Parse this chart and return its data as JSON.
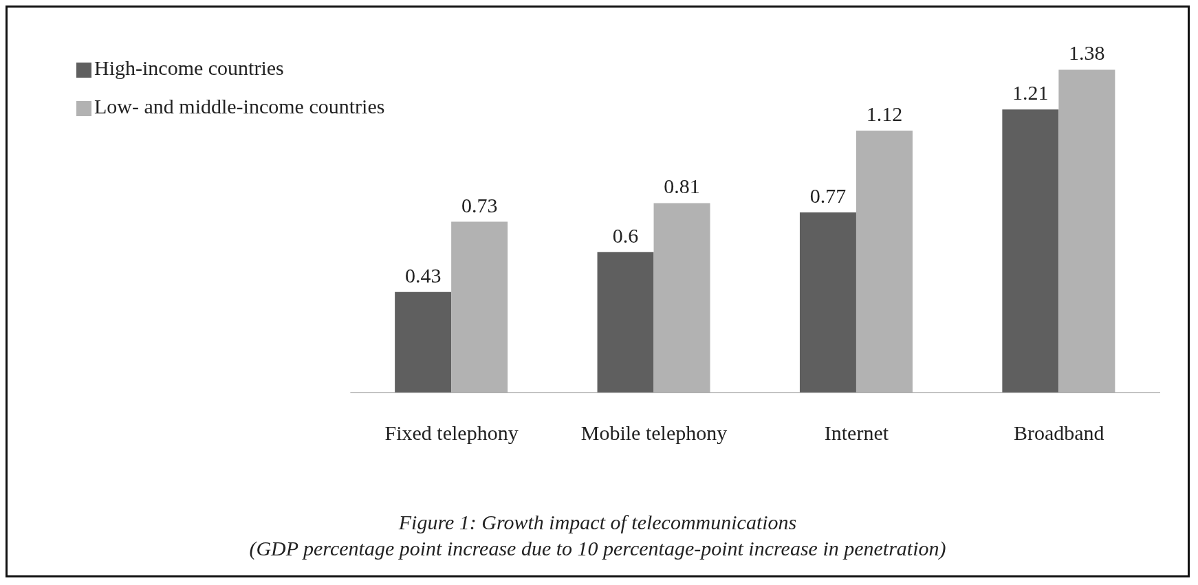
{
  "chart_data": {
    "type": "bar",
    "categories": [
      "Fixed telephony",
      "Mobile telephony",
      "Internet",
      "Broadband"
    ],
    "series": [
      {
        "name": "High-income countries",
        "color": "#5f5f5f",
        "values": [
          0.43,
          0.6,
          0.77,
          1.21
        ]
      },
      {
        "name": "Low- and middle-income countries",
        "color": "#b2b2b2",
        "values": [
          0.73,
          0.81,
          1.12,
          1.38
        ]
      }
    ],
    "data_labels": true,
    "legend": "top left",
    "grid": false,
    "annotations": [
      "Figure 1: Growth impact of telecommunications",
      "(GDP percentage point increase due to 10 percentage-point increase in penetration)"
    ]
  }
}
